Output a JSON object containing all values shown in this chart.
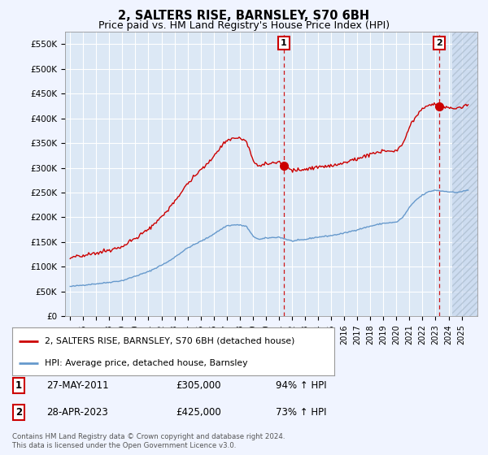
{
  "title": "2, SALTERS RISE, BARNSLEY, S70 6BH",
  "subtitle": "Price paid vs. HM Land Registry's House Price Index (HPI)",
  "ylim": [
    0,
    575000
  ],
  "yticks": [
    0,
    50000,
    100000,
    150000,
    200000,
    250000,
    300000,
    350000,
    400000,
    450000,
    500000,
    550000
  ],
  "ytick_labels": [
    "£0",
    "£50K",
    "£100K",
    "£150K",
    "£200K",
    "£250K",
    "£300K",
    "£350K",
    "£400K",
    "£450K",
    "£500K",
    "£550K"
  ],
  "xlim_start": 1994.6,
  "xlim_end": 2026.2,
  "background_color": "#f0f4ff",
  "plot_bg_color": "#dce8f5",
  "hatch_bg_color": "#c8d8ee",
  "grid_color": "#ffffff",
  "red_color": "#cc0000",
  "blue_color": "#6699cc",
  "hatch_start": 2024.25,
  "sale1_x": 2011.38,
  "sale1_y": 305000,
  "sale2_x": 2023.3,
  "sale2_y": 425000,
  "sale1_label": "1",
  "sale2_label": "2",
  "legend_line1": "2, SALTERS RISE, BARNSLEY, S70 6BH (detached house)",
  "legend_line2": "HPI: Average price, detached house, Barnsley",
  "table_row1": [
    "1",
    "27-MAY-2011",
    "£305,000",
    "94% ↑ HPI"
  ],
  "table_row2": [
    "2",
    "28-APR-2023",
    "£425,000",
    "73% ↑ HPI"
  ],
  "footer": "Contains HM Land Registry data © Crown copyright and database right 2024.\nThis data is licensed under the Open Government Licence v3.0.",
  "title_fontsize": 10.5,
  "subtitle_fontsize": 9
}
